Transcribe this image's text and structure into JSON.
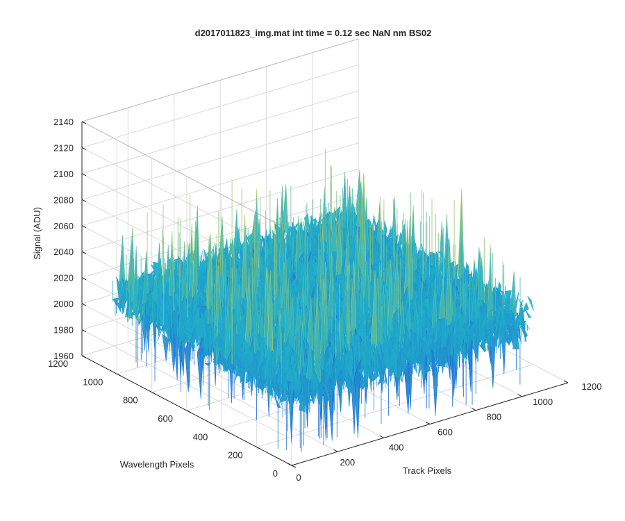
{
  "chart_data": {
    "type": "surface",
    "title": "d2017011823_img.mat int time = 0.12 sec  NaN nm BS02",
    "xlabel": "Track Pixels",
    "ylabel": "Wavelength Pixels",
    "zlabel": "Signal (ADU)",
    "xlim": [
      0,
      1200
    ],
    "ylim": [
      0,
      1200
    ],
    "zlim": [
      1960,
      2140
    ],
    "x_ticks": [
      "0",
      "200",
      "400",
      "600",
      "800",
      "1000",
      "1200"
    ],
    "y_ticks": [
      "0",
      "200",
      "400",
      "600",
      "800",
      "1000",
      "1200"
    ],
    "z_ticks": [
      "1960",
      "1980",
      "2000",
      "2020",
      "2040",
      "2060",
      "2080",
      "2100",
      "2120",
      "2140"
    ],
    "grid": true,
    "colormap": "parula",
    "surface": {
      "x_extent": [
        0,
        1024
      ],
      "y_extent": [
        0,
        1024
      ],
      "mean_level": 2020,
      "min_approx": 1965,
      "max_approx": 2105
    },
    "colors": {
      "axis": "#262626",
      "grid": "#d9d9d9",
      "low": "#1d6fd6",
      "mid": "#21b0c8",
      "high": "#d8d24a"
    }
  }
}
